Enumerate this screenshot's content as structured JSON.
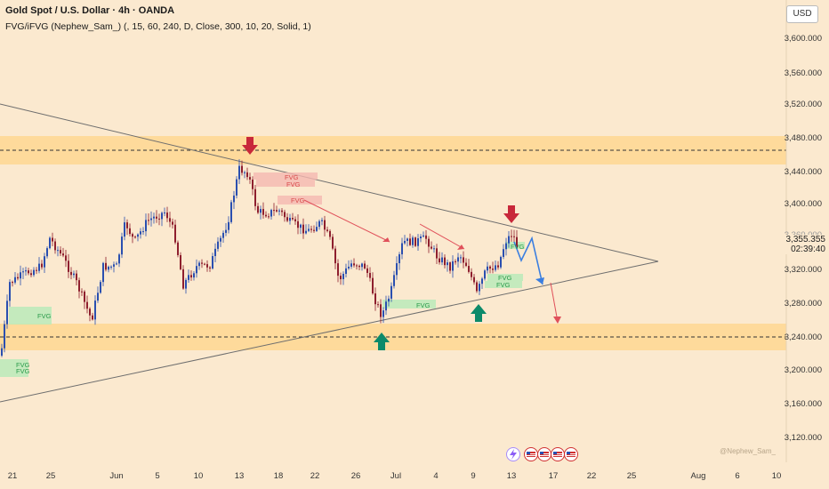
{
  "header": {
    "title": "Gold Spot / U.S. Dollar · 4h · OANDA",
    "indicator": "FVG/iFVG (Nephew_Sam_) (, 15, 60, 240, D, Close, 300, 10, 20, Solid, 1)"
  },
  "currency_button": "USD",
  "price_axis": {
    "labels": [
      "3,600.000",
      "3,560.000",
      "3,520.000",
      "3,480.000",
      "3,440.000",
      "3,400.000",
      "3,320.000",
      "3,280.000",
      "3,240.000",
      "3,200.000",
      "3,160.000",
      "3,120.000"
    ],
    "current_price": "3,355.355",
    "countdown": "02:39:40",
    "partial_label": "3,360.000"
  },
  "time_axis": {
    "labels": [
      "21",
      "25",
      "Jun",
      "5",
      "10",
      "13",
      "18",
      "22",
      "26",
      "Jul",
      "4",
      "9",
      "13",
      "17",
      "22",
      "25",
      "Aug",
      "6",
      "10"
    ]
  },
  "fvg_labels": [
    "FVG",
    "FVG",
    "FVG",
    "FVG",
    "FVG",
    "FVG",
    "FVG",
    "FVG",
    "FVG",
    "FVG"
  ],
  "watermark": "@Nephew_Sam_",
  "colors": {
    "background": "#fbe9cf",
    "zone": "#ffd48a",
    "bull": "#2a4fb0",
    "bear": "#8e1f2e",
    "arrow_red": "#c8283a",
    "arrow_green": "#0c8a6a",
    "forecast_blue": "#3a7ee0",
    "forecast_red": "#e0505a"
  }
}
